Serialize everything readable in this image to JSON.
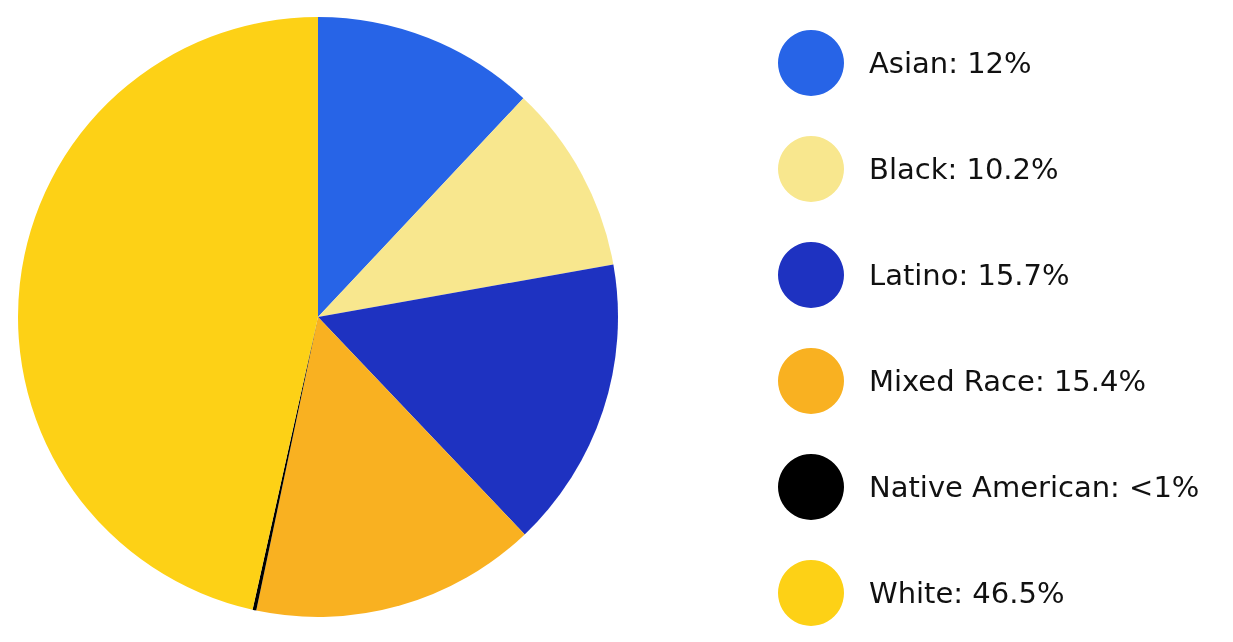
{
  "chart_data": {
    "type": "pie",
    "categories": [
      "Asian",
      "Black",
      "Latino",
      "Mixed Race",
      "Native American",
      "White"
    ],
    "values": [
      12,
      10.2,
      15.7,
      15.4,
      0.2,
      46.5
    ],
    "value_labels": [
      "12%",
      "10.2%",
      "15.7%",
      "15.4%",
      "<1%",
      "46.5%"
    ],
    "colors": [
      "#2764e7",
      "#f8e78e",
      "#1e32c1",
      "#f9b121",
      "#000000",
      "#fdd116"
    ],
    "legend": "right"
  }
}
